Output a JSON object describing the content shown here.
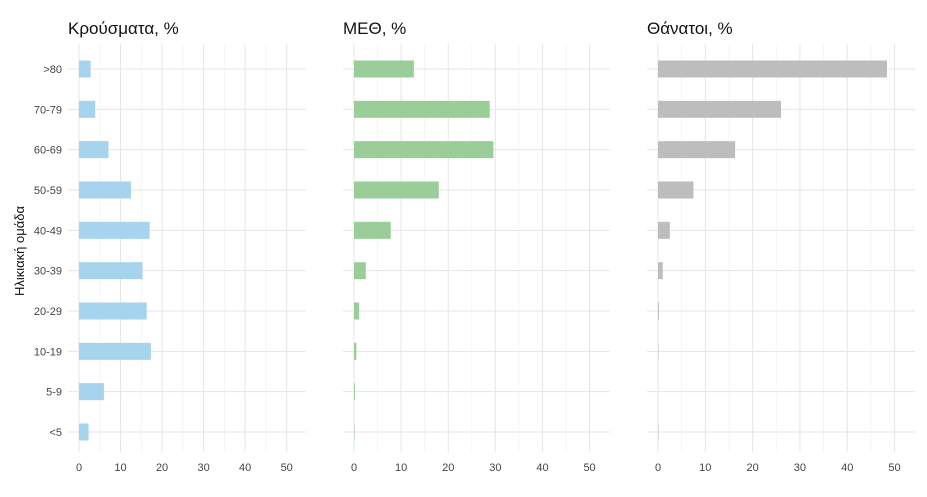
{
  "chart_data": {
    "type": "bar",
    "orientation": "horizontal",
    "ylabel": "Ηλικιακή ομάδα",
    "categories": [
      "<5",
      "5-9",
      "10-19",
      "20-29",
      "30-39",
      "40-49",
      "50-59",
      "60-69",
      "70-79",
      ">80"
    ],
    "xlim": [
      0,
      52
    ],
    "xticks": [
      "0",
      "10",
      "20",
      "30",
      "40",
      "50"
    ],
    "grid": true,
    "legend": "none",
    "panels": [
      {
        "title": "Κρούσματα, %",
        "color": "#a6d3ee",
        "values": [
          2.3,
          6.0,
          17.3,
          16.3,
          15.3,
          17.0,
          12.5,
          7.1,
          3.9,
          2.8
        ]
      },
      {
        "title": "ΜΕΘ, %",
        "color": "#9acd98",
        "values": [
          0.1,
          0.2,
          0.5,
          1.1,
          2.5,
          7.8,
          18.0,
          29.6,
          28.8,
          12.7
        ]
      },
      {
        "title": "Θάνατοι, %",
        "color": "#bdbdbd",
        "values": [
          0.1,
          0.0,
          0.1,
          0.2,
          1.0,
          2.5,
          7.5,
          16.3,
          26.0,
          48.4
        ]
      }
    ]
  }
}
